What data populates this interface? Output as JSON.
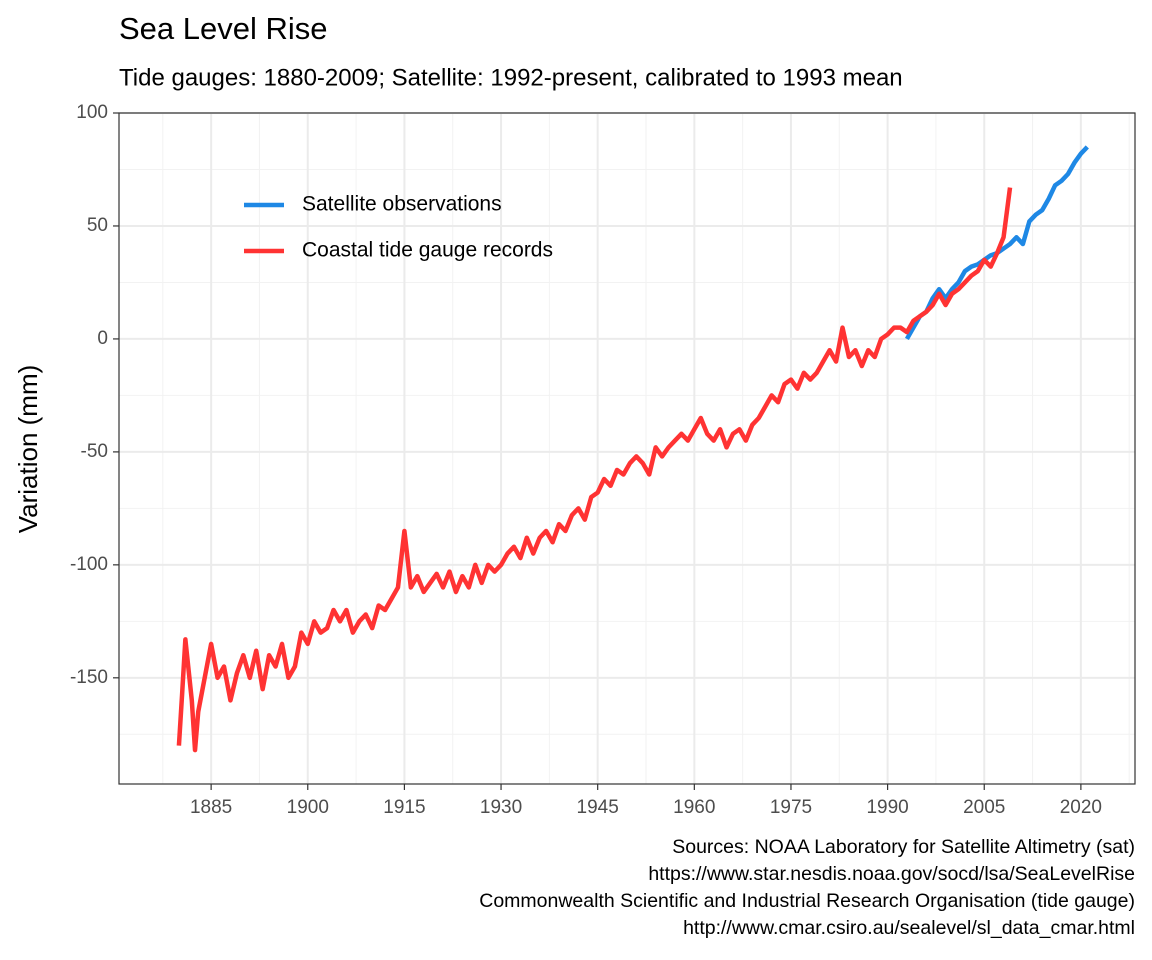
{
  "chart_data": {
    "type": "line",
    "title": "Sea Level Rise",
    "subtitle": "Tide gauges: 1880-2009; Satellite: 1992-present, calibrated to 1993 mean",
    "y_label": "Variation (mm)",
    "caption": [
      "Sources: NOAA Laboratory for Satellite Altimetry (sat)",
      "https://www.star.nesdis.noaa.gov/socd/lsa/SeaLevelRise",
      "Commonwealth Scientific and Industrial Research Organisation (tide gauge)",
      "http://www.cmar.csiro.au/sealevel/sl_data_cmar.html"
    ],
    "xlim": [
      1870.7,
      2028.4
    ],
    "ylim": [
      -197,
      100
    ],
    "xticks": [
      1885,
      1900,
      1915,
      1930,
      1945,
      1960,
      1975,
      1990,
      2005,
      2020
    ],
    "yticks": [
      -150,
      -100,
      -50,
      0,
      50,
      100
    ],
    "xminorticks": [
      1877.5,
      1892.5,
      1907.5,
      1922.5,
      1937.5,
      1952.5,
      1967.5,
      1982.5,
      1997.5,
      2012.5,
      2027.5
    ],
    "yminorticks": [
      -175,
      -125,
      -75,
      -25,
      25,
      75
    ],
    "grid": true,
    "legend_position": "top-left",
    "series": [
      {
        "name": "Satellite observations",
        "color": "#1e88e5",
        "x": [
          1993,
          1994,
          1995,
          1996,
          1997,
          1998,
          1999,
          2000,
          2001,
          2002,
          2003,
          2004,
          2005,
          2006,
          2007,
          2008,
          2009,
          2010,
          2011,
          2012,
          2013,
          2014,
          2015,
          2016,
          2017,
          2018,
          2019,
          2020,
          2021
        ],
        "values": [
          0,
          5,
          10,
          12,
          18,
          22,
          18,
          22,
          25,
          30,
          32,
          33,
          35,
          37,
          38,
          40,
          42,
          45,
          42,
          52,
          55,
          57,
          62,
          68,
          70,
          73,
          78,
          82,
          85
        ]
      },
      {
        "name": "Coastal tide gauge records",
        "color": "#ff3333",
        "x": [
          1880,
          1880.5,
          1881,
          1882,
          1882.5,
          1883,
          1884,
          1885,
          1886,
          1887,
          1888,
          1889,
          1890,
          1891,
          1892,
          1893,
          1894,
          1895,
          1896,
          1897,
          1898,
          1899,
          1900,
          1901,
          1902,
          1903,
          1904,
          1905,
          1906,
          1907,
          1908,
          1909,
          1910,
          1911,
          1912,
          1913,
          1914,
          1915,
          1916,
          1917,
          1918,
          1919,
          1920,
          1921,
          1922,
          1923,
          1924,
          1925,
          1926,
          1927,
          1928,
          1929,
          1930,
          1931,
          1932,
          1933,
          1934,
          1935,
          1936,
          1937,
          1938,
          1939,
          1940,
          1941,
          1942,
          1943,
          1944,
          1945,
          1946,
          1947,
          1948,
          1949,
          1950,
          1951,
          1952,
          1953,
          1954,
          1955,
          1956,
          1957,
          1958,
          1959,
          1960,
          1961,
          1962,
          1963,
          1964,
          1965,
          1966,
          1967,
          1968,
          1969,
          1970,
          1971,
          1972,
          1973,
          1974,
          1975,
          1976,
          1977,
          1978,
          1979,
          1980,
          1981,
          1982,
          1983,
          1984,
          1985,
          1986,
          1987,
          1988,
          1989,
          1990,
          1991,
          1992,
          1993,
          1994,
          1995,
          1996,
          1997,
          1998,
          1999,
          2000,
          2001,
          2002,
          2003,
          2004,
          2005,
          2006,
          2007,
          2008,
          2009
        ],
        "values": [
          -180,
          -157,
          -133,
          -160,
          -182,
          -165,
          -150,
          -135,
          -150,
          -145,
          -160,
          -148,
          -140,
          -150,
          -138,
          -155,
          -140,
          -145,
          -135,
          -150,
          -145,
          -130,
          -135,
          -125,
          -130,
          -128,
          -120,
          -125,
          -120,
          -130,
          -125,
          -122,
          -128,
          -118,
          -120,
          -115,
          -110,
          -85,
          -110,
          -105,
          -112,
          -108,
          -104,
          -110,
          -103,
          -112,
          -105,
          -110,
          -100,
          -108,
          -100,
          -103,
          -100,
          -95,
          -92,
          -97,
          -88,
          -95,
          -88,
          -85,
          -90,
          -82,
          -85,
          -78,
          -75,
          -80,
          -70,
          -68,
          -62,
          -65,
          -58,
          -60,
          -55,
          -52,
          -55,
          -60,
          -48,
          -52,
          -48,
          -45,
          -42,
          -45,
          -40,
          -35,
          -42,
          -45,
          -40,
          -48,
          -42,
          -40,
          -45,
          -38,
          -35,
          -30,
          -25,
          -28,
          -20,
          -18,
          -22,
          -15,
          -18,
          -15,
          -10,
          -5,
          -10,
          5,
          -8,
          -5,
          -12,
          -5,
          -8,
          0,
          2,
          5,
          5,
          3,
          8,
          10,
          12,
          15,
          20,
          15,
          20,
          22,
          25,
          28,
          30,
          35,
          32,
          38,
          45,
          67
        ]
      }
    ]
  }
}
